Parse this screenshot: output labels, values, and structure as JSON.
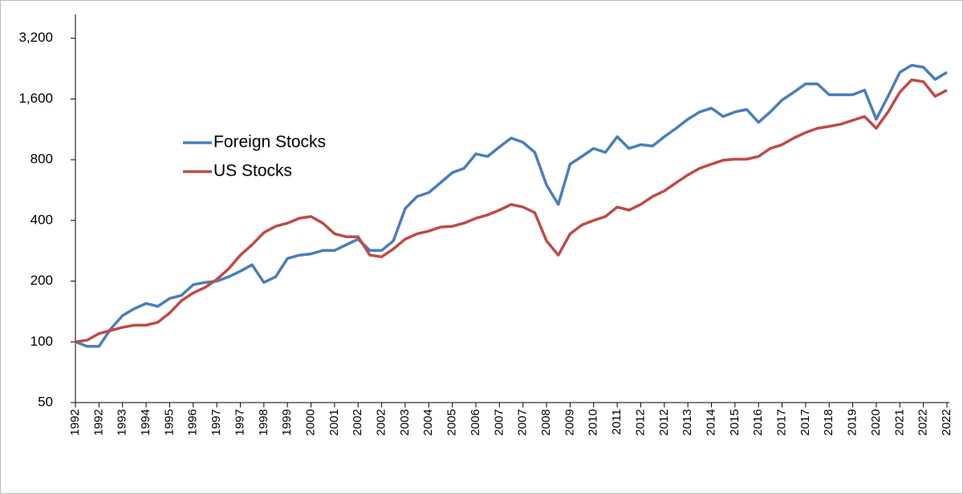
{
  "chart_data": {
    "type": "line",
    "log_scale": true,
    "legend": "left",
    "categories": [
      "1992",
      null,
      "1992",
      null,
      "1993",
      null,
      "1994",
      null,
      "1995",
      null,
      "1996",
      null,
      "1997",
      null,
      "1997",
      null,
      "1998",
      null,
      "1999",
      null,
      "2000",
      null,
      "2001",
      null,
      "2002",
      null,
      "2002",
      null,
      "2003",
      null,
      "2004",
      null,
      "2005",
      null,
      "2006",
      null,
      "2007",
      null,
      "2007",
      null,
      "2008",
      null,
      "2009",
      null,
      "2010",
      null,
      "2011",
      null,
      "2012",
      null,
      "2012",
      null,
      "2013",
      null,
      "2014",
      null,
      "2015",
      null,
      "2016",
      null,
      "2017",
      null,
      "2017",
      null,
      "2018",
      null,
      "2019",
      null,
      "2020",
      null,
      "2021",
      null,
      "2022",
      null,
      "2022"
    ],
    "series": [
      {
        "name": "Foreign Stocks",
        "color": "#4a7ebb",
        "values": [
          100,
          95,
          95,
          116,
          135,
          146,
          155,
          150,
          164,
          170,
          192,
          197,
          200,
          210,
          224,
          241,
          197,
          210,
          259,
          269,
          273,
          284,
          284,
          303,
          323,
          284,
          284,
          317,
          458,
          525,
          550,
          615,
          690,
          725,
          855,
          830,
          925,
          1025,
          975,
          870,
          600,
          480,
          760,
          830,
          910,
          870,
          1040,
          910,
          950,
          935,
          1040,
          1145,
          1270,
          1380,
          1440,
          1310,
          1380,
          1420,
          1225,
          1380,
          1580,
          1730,
          1900,
          1900,
          1680,
          1680,
          1680,
          1770,
          1270,
          1650,
          2170,
          2350,
          2300,
          2000,
          2170
        ]
      },
      {
        "name": "US Stocks",
        "color": "#be4b48",
        "values": [
          100,
          102,
          110,
          114,
          118,
          121,
          121,
          125,
          139,
          160,
          175,
          186,
          204,
          230,
          269,
          303,
          348,
          374,
          388,
          410,
          418,
          388,
          343,
          332,
          332,
          269,
          264,
          289,
          323,
          343,
          354,
          371,
          374,
          388,
          410,
          426,
          450,
          480,
          466,
          437,
          317,
          269,
          343,
          380,
          400,
          418,
          466,
          450,
          480,
          525,
          560,
          615,
          672,
          725,
          760,
          795,
          805,
          805,
          830,
          910,
          950,
          1025,
          1090,
          1145,
          1170,
          1200,
          1255,
          1310,
          1145,
          1380,
          1730,
          1990,
          1950,
          1650,
          1770
        ]
      }
    ],
    "ylim": [
      50,
      4200
    ],
    "yticks": [
      50,
      100,
      200,
      400,
      800,
      {
        "value": 1600,
        "label": "1,600"
      },
      {
        "value": 3200,
        "label": "3,200"
      }
    ]
  }
}
